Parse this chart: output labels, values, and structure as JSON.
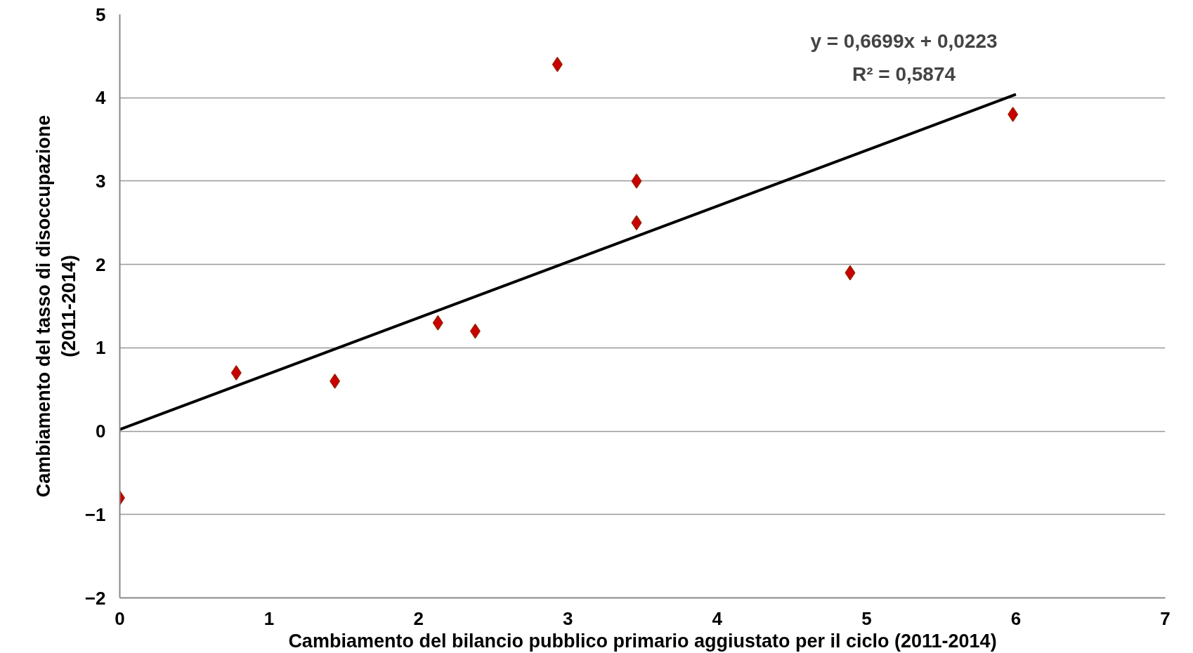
{
  "chart_data": {
    "type": "scatter",
    "xlabel": "Cambiamento del bilancio pubblico primario aggiustato per il ciclo (2011-2014)",
    "ylabel": "Cambiamento del tasso di disoccupazione\n(2011-2014)",
    "series": [
      {
        "color": "#cc0000",
        "x": [
          0,
          0.78,
          1.44,
          2.13,
          2.38,
          2.93,
          3.46,
          3.46,
          4.89,
          5.98
        ],
        "values": [
          -0.8,
          0.7,
          0.6,
          1.3,
          1.2,
          4.4,
          3.0,
          2.5,
          1.9,
          3.8
        ],
        "marker": "diamond"
      },
      {
        "type": "line",
        "color": "#000000",
        "x": [
          0,
          6
        ],
        "values": [
          0.02,
          4.04
        ],
        "line_style": "solid"
      }
    ],
    "annotations": [
      "y = 0,6699x + 0,0223",
      "R² = 0,5874"
    ],
    "xlim": [
      0,
      7
    ],
    "xticks": [
      0,
      1,
      2,
      3,
      4,
      5,
      6,
      7
    ],
    "ylim": [
      -2,
      5
    ],
    "yticks": [
      -2,
      -1,
      0,
      1,
      2,
      3,
      4,
      5
    ],
    "grid": "y"
  }
}
